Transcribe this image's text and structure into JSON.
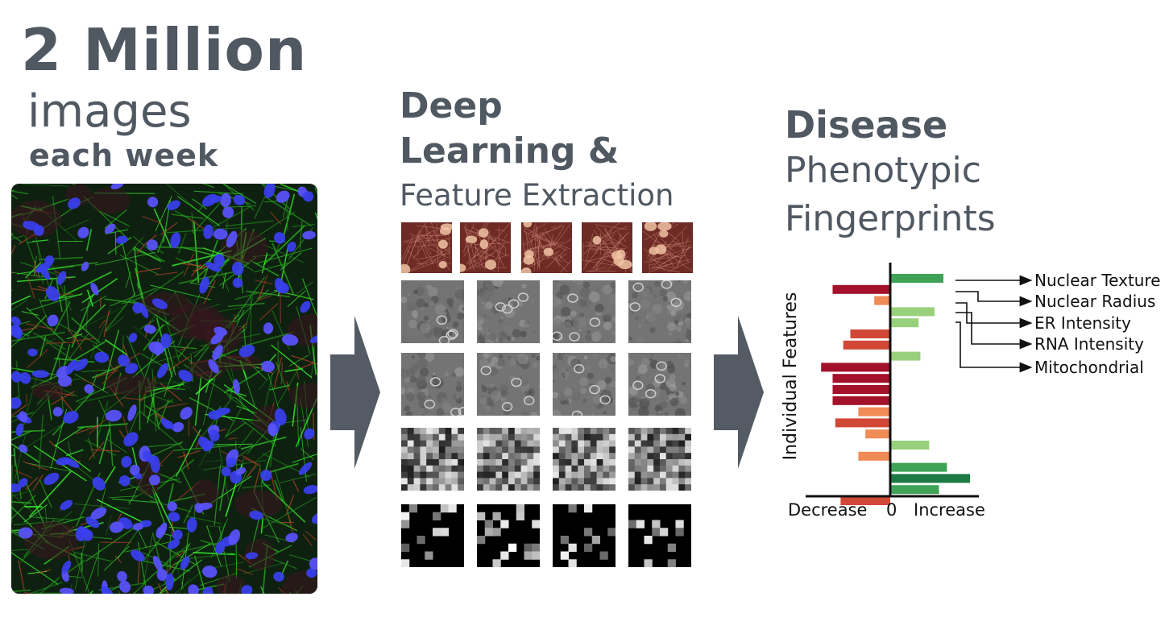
{
  "stage1": {
    "headline": "2 Million",
    "subline": "images",
    "detail": "each week"
  },
  "stage2": {
    "title_line1": "Deep",
    "title_line2": "Learning &",
    "subtitle": "Feature Extraction"
  },
  "stage3": {
    "title": "Disease",
    "subtitle_line1": "Phenotypic",
    "subtitle_line2": "Fingerprints"
  },
  "colors": {
    "heading": "#505862",
    "arrow": "#545b64",
    "increase_strong": "#1e7a43",
    "increase_mid": "#3fa257",
    "increase_light": "#98d07c",
    "decrease_strong": "#a3122a",
    "decrease_mid": "#d24836",
    "decrease_light": "#f08b55"
  },
  "chart_data": {
    "type": "bar",
    "orientation": "horizontal",
    "ylabel": "Individual Features",
    "xlabel_left": "Decrease",
    "xlabel_center": "0",
    "xlabel_right": "Increase",
    "values": [
      6,
      -6.5,
      -1.8,
      5,
      3.2,
      -4.5,
      -5.3,
      3.4,
      -7.8,
      -6.5,
      -6.5,
      -6.5,
      -3.6,
      -6.2,
      -2.8,
      4.4,
      -3.6,
      6.4,
      9,
      5.5,
      -5.6
    ],
    "labeled_features": [
      "Nuclear Texture",
      "Nuclear Radius",
      "ER Intensity",
      "RNA Intensity",
      "Mitochondrial"
    ]
  }
}
